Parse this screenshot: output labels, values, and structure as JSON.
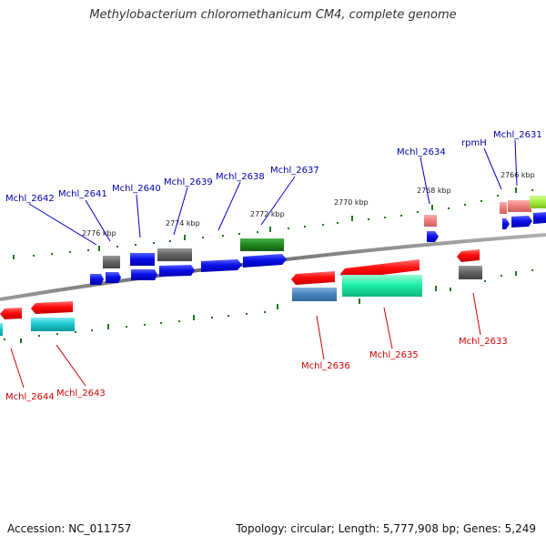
{
  "title": "Methylobacterium chloromethanicum CM4, complete genome",
  "footer": {
    "accession": "Accession: NC_011757",
    "info": "Topology: circular; Length: 5,777,908 bp; Genes: 5,249"
  },
  "kbp_ticks": [
    "2776 kbp",
    "2774 kbp",
    "2772 kbp",
    "2770 kbp",
    "2768 kbp",
    "2766 kbp"
  ],
  "top_genes": [
    "Mchl_2642",
    "Mchl_2641",
    "Mchl_2640",
    "Mchl_2639",
    "Mchl_2638",
    "Mchl_2637",
    "Mchl_2634",
    "rpmH",
    "Mchl_2631"
  ],
  "bottom_genes": [
    "Mchl_2644",
    "Mchl_2643",
    "Mchl_2636",
    "Mchl_2635",
    "Mchl_2633"
  ],
  "colors": {
    "blue": "#0a10e6",
    "red": "#ff0a0a",
    "gray": "#666666",
    "green": "#228b22",
    "pink": "#f08080",
    "cyan": "#1ac8d0",
    "steelblue": "#4a86c0",
    "springgreen": "#1ef0a8",
    "lime": "#a8f040",
    "tick": "#1a7a1a",
    "backbone": "#777777",
    "top_label": "#0000aa",
    "bottom_label": "#cc0000"
  }
}
